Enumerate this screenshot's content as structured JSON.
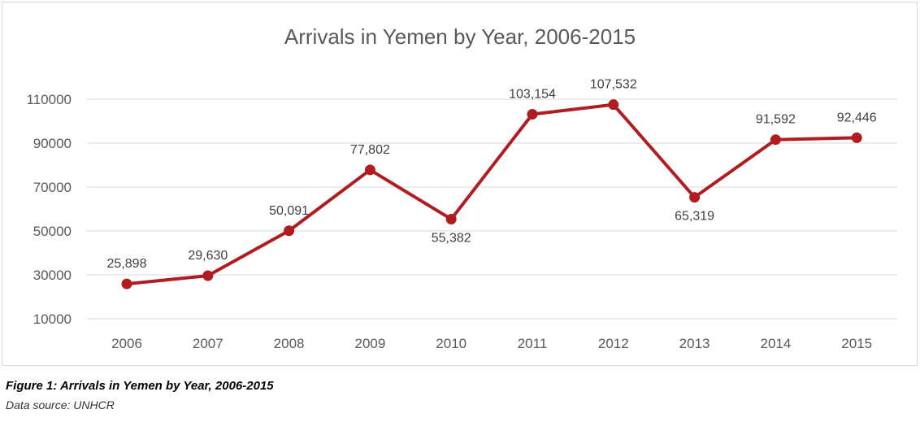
{
  "chart_data": {
    "type": "line",
    "title": "Arrivals in Yemen by Year, 2006-2015",
    "xlabel": "",
    "ylabel": "",
    "categories": [
      "2006",
      "2007",
      "2008",
      "2009",
      "2010",
      "2011",
      "2012",
      "2013",
      "2014",
      "2015"
    ],
    "series": [
      {
        "values": [
          25898,
          29630,
          50091,
          77802,
          55382,
          103154,
          107532,
          65319,
          91592,
          92446
        ],
        "data_labels": [
          "25,898",
          "29,630",
          "50,091",
          "77,802",
          "55,382",
          "103,154",
          "107,532",
          "65,319",
          "91,592",
          "92,446"
        ],
        "color": "#b01c1f"
      }
    ],
    "y_ticks": [
      "10000",
      "30000",
      "50000",
      "70000",
      "90000",
      "110000"
    ],
    "ylim": [
      10000,
      110000
    ],
    "grid": true,
    "legend": "none"
  },
  "caption": {
    "figure_label": "Figure 1: Arrivals in Yemen by Year, 2006-2015",
    "source": "Data source: UNHCR"
  },
  "colors": {
    "line": "#b01c1f",
    "grid": "#d9d9d9",
    "text": "#595959"
  }
}
